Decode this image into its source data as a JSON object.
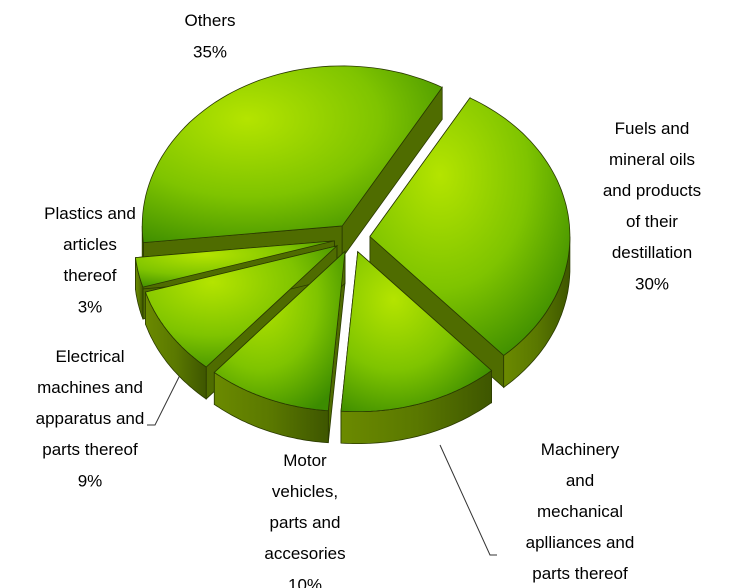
{
  "chart_data": {
    "type": "pie",
    "categories": [
      "Others",
      "Fuels and\nmineral oils\nand products\nof their\ndestillation",
      "Machinery\nand\nmechanical\naplliances and\nparts thereof",
      "Motor\nvehicles,\nparts and\naccesories",
      "Electrical\nmachines and\napparatus and\nparts thereof",
      "Plastics and\narticles\nthereof"
    ],
    "values": [
      35,
      30,
      13,
      10,
      9,
      3
    ],
    "value_labels": [
      "35%",
      "30%",
      null,
      "10%",
      "9%",
      "3%"
    ],
    "color": "#7fc400"
  }
}
